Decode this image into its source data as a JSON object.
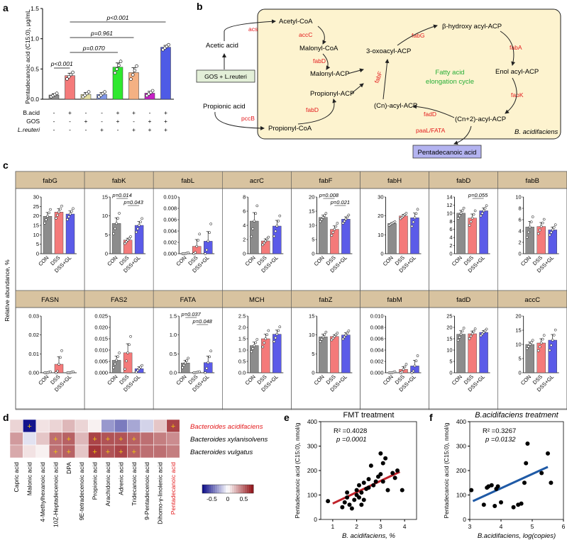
{
  "panel_labels": [
    "a",
    "b",
    "c",
    "d",
    "e",
    "f"
  ],
  "panel_a": {
    "ylabel": "Pentadecanoic acid (C15:0), μg/mL",
    "yticks": [
      "0.0",
      "0.5",
      "1.0",
      "1.5"
    ],
    "row_labels": [
      "B.acid",
      "GOS",
      "L.reuteri"
    ],
    "signs": [
      [
        "-",
        "+",
        "-",
        "-",
        "+",
        "+",
        "-",
        "+"
      ],
      [
        "-",
        "-",
        "+",
        "-",
        "+",
        "-",
        "+",
        "+"
      ],
      [
        "-",
        "-",
        "-",
        "+",
        "-",
        "+",
        "+",
        "+"
      ]
    ],
    "pvalues": [
      "p<0.001",
      "p=0.070",
      "p=0.961",
      "p<0.001"
    ],
    "colors": [
      "#8c8c8c",
      "#f47a7a",
      "#e5e0a3",
      "#7f96e8",
      "#2ee82e",
      "#f4b183",
      "#c61fc6",
      "#4e5be6"
    ]
  },
  "panel_b": {
    "nodes": {
      "acetyl_coa": "Acetyl-CoA",
      "malonyl_coa": "Malonyl-CoA",
      "malonyl_acp": "Malonyl-ACP",
      "propionyl_acp": "Propionyl-ACP",
      "propionyl_coa": "Propionyl-CoA",
      "acetic_acid": "Acetic acid",
      "propionic_acid": "Propionic acid",
      "gos_box": "GOS + L.reuteri",
      "oxoacyl": "3-oxoacyl-ACP",
      "hydroxy": "β-hydroxy acyl-ACP",
      "enol": "Enol acyl-ACP",
      "cn_acyl": "(Cn)-acyl-ACP",
      "cn2_acyl": "(Cn+2)-acyl-ACP",
      "cycle": [
        "Fatty acid",
        "elongation cycle"
      ],
      "organism": "B. acidifaciens",
      "product": "Pentadecanoic acid"
    },
    "enzymes": [
      "acs",
      "accC",
      "fabD",
      "fabD",
      "pccB",
      "fabF",
      "fabG",
      "fabA",
      "fabK",
      "fadD",
      "paaL/FATA"
    ]
  },
  "panel_c": {
    "ylabel": "Relative abundance, %",
    "groups": [
      "CON",
      "DSS",
      "DSS+GL"
    ],
    "group_colors": [
      "#8c8c8c",
      "#f47a7a",
      "#5b5be8"
    ],
    "header_color": "#d8c3a0",
    "genes": [
      {
        "name": "fabG",
        "yticks": [
          "0",
          "5",
          "10",
          "15",
          "20",
          "25",
          "30"
        ],
        "ymax": 30,
        "values": [
          19.8,
          22.0,
          21.0
        ],
        "errs": [
          2.0,
          1.8,
          1.6
        ],
        "pvalues": []
      },
      {
        "name": "fabK",
        "yticks": [
          "0",
          "5",
          "10",
          "15"
        ],
        "ymax": 15,
        "values": [
          8.0,
          3.6,
          7.5
        ],
        "errs": [
          1.5,
          0.5,
          1.0
        ],
        "pvalues": [
          "p=0.014",
          "p=0.043"
        ]
      },
      {
        "name": "fabL",
        "yticks": [
          "0.000",
          "0.002",
          "0.004",
          "0.006",
          "0.008",
          "0.010"
        ],
        "ymax": 0.01,
        "values": [
          0.0,
          0.0013,
          0.0022
        ],
        "errs": [
          0.0,
          0.0012,
          0.0017
        ],
        "pvalues": []
      },
      {
        "name": "acrC",
        "yticks": [
          "0",
          "2",
          "4",
          "6",
          "8"
        ],
        "ymax": 8,
        "values": [
          4.6,
          1.8,
          3.9
        ],
        "errs": [
          1.2,
          0.3,
          0.8
        ],
        "pvalues": []
      },
      {
        "name": "fabF",
        "yticks": [
          "0",
          "5",
          "10",
          "15",
          "20"
        ],
        "ymax": 20,
        "values": [
          12.8,
          8.6,
          12.2
        ],
        "errs": [
          0.8,
          1.2,
          0.8
        ],
        "pvalues": [
          "p=0.008",
          "p=0.021"
        ]
      },
      {
        "name": "fabH",
        "yticks": [
          "0",
          "10",
          "20",
          "30"
        ],
        "ymax": 30,
        "values": [
          16.0,
          20.0,
          19.0
        ],
        "errs": [
          0.5,
          0.8,
          2.5
        ],
        "pvalues": []
      },
      {
        "name": "fabD",
        "yticks": [
          "0",
          "2",
          "4",
          "6",
          "8",
          "10",
          "12",
          "14"
        ],
        "ymax": 14,
        "values": [
          10.0,
          8.8,
          10.6
        ],
        "errs": [
          0.7,
          1.0,
          0.7
        ],
        "pvalues": [
          "p=0.055"
        ]
      },
      {
        "name": "fabB",
        "yticks": [
          "0",
          "2",
          "4",
          "6",
          "8",
          "10"
        ],
        "ymax": 10,
        "values": [
          4.7,
          4.8,
          4.2
        ],
        "errs": [
          1.0,
          0.7,
          0.5
        ],
        "pvalues": []
      },
      {
        "name": "FASN",
        "yticks": [
          "0.00",
          "0.01",
          "0.02",
          "0.03"
        ],
        "ymax": 0.03,
        "values": [
          0.0,
          0.0045,
          0.0
        ],
        "errs": [
          0.0,
          0.004,
          0.0
        ],
        "pvalues": []
      },
      {
        "name": "FAS2",
        "yticks": [
          "0.000",
          "0.005",
          "0.010",
          "0.015",
          "0.020",
          "0.025"
        ],
        "ymax": 0.025,
        "values": [
          0.0055,
          0.0088,
          0.0018
        ],
        "errs": [
          0.0018,
          0.004,
          0.0008
        ],
        "pvalues": []
      },
      {
        "name": "FATA",
        "yticks": [
          "0.0",
          "0.5",
          "1.0",
          "1.5"
        ],
        "ymax": 1.5,
        "values": [
          0.26,
          0.01,
          0.27
        ],
        "errs": [
          0.07,
          0.01,
          0.17
        ],
        "pvalues": [
          "p=0.037",
          "p=0.048"
        ]
      },
      {
        "name": "MCH",
        "yticks": [
          "0.0",
          "0.5",
          "1.0",
          "1.5",
          "2.0",
          "2.5"
        ],
        "ymax": 2.5,
        "values": [
          1.2,
          1.5,
          1.7
        ],
        "errs": [
          0.15,
          0.2,
          0.18
        ],
        "pvalues": []
      },
      {
        "name": "fabZ",
        "yticks": [
          "0",
          "5",
          "10",
          "15"
        ],
        "ymax": 15,
        "values": [
          9.5,
          9.6,
          10.0
        ],
        "errs": [
          0.7,
          0.5,
          0.6
        ],
        "pvalues": []
      },
      {
        "name": "fabM",
        "yticks": [
          "0.000",
          "0.002",
          "0.004",
          "0.006",
          "0.008",
          "0.010"
        ],
        "ymax": 0.01,
        "values": [
          0.0,
          0.0006,
          0.0012
        ],
        "errs": [
          0.0,
          0.0005,
          0.001
        ],
        "pvalues": []
      },
      {
        "name": "fadD",
        "yticks": [
          "0",
          "5",
          "10",
          "15",
          "20",
          "25"
        ],
        "ymax": 25,
        "values": [
          17.0,
          17.2,
          17.8
        ],
        "errs": [
          1.5,
          1.2,
          0.8
        ],
        "pvalues": []
      },
      {
        "name": "accC",
        "yticks": [
          "0",
          "5",
          "10",
          "15",
          "20"
        ],
        "ymax": 20,
        "values": [
          10.0,
          10.5,
          11.5
        ],
        "errs": [
          0.8,
          1.5,
          2.0
        ],
        "pvalues": []
      }
    ]
  },
  "panel_d": {
    "rows": [
      "Bacteroides acidifaciens",
      "Bacteroides xylanisolvens",
      "Bacteroides vulgatus"
    ],
    "columns": [
      "Capric acid",
      "Malonic acid",
      "4-Methylhexanoic acid",
      "10Z-Heptadecenoic acid",
      "DPA",
      "9E-tetradecenoic acid",
      "Propionic acid",
      "Arachidonic acid",
      "Adrenic acid",
      "Tridecanoic acid",
      "9-Pentadecenoic acid",
      "Dihomo-γ-linolenic acid",
      "Pentadecanoic acid"
    ],
    "values": [
      [
        0.15,
        -0.8,
        0.1,
        0.15,
        0.25,
        0.15,
        0.05,
        -0.35,
        -0.45,
        -0.3,
        -0.15,
        0.2,
        0.65
      ],
      [
        0.35,
        -0.1,
        0.2,
        0.5,
        0.55,
        0.25,
        0.65,
        0.6,
        0.6,
        0.55,
        0.5,
        0.45,
        0.4
      ],
      [
        0.3,
        0.1,
        0.05,
        0.5,
        0.55,
        0.2,
        0.7,
        0.6,
        0.65,
        0.55,
        0.5,
        0.5,
        0.45
      ]
    ],
    "stars": [
      [
        false,
        true,
        false,
        false,
        false,
        false,
        false,
        false,
        false,
        false,
        false,
        false,
        true
      ],
      [
        false,
        false,
        false,
        true,
        true,
        false,
        true,
        true,
        true,
        true,
        false,
        false,
        false
      ],
      [
        false,
        false,
        false,
        true,
        true,
        false,
        true,
        true,
        true,
        true,
        false,
        false,
        false
      ]
    ],
    "colorbar_ticks": [
      "-0.5",
      "0",
      "0.5"
    ]
  },
  "chart_data": [
    {
      "type": "scatter",
      "title": "FMT treatment",
      "xlabel": "B. acidifaciens, %",
      "ylabel": "Pentadecanoic acid (C15:0), nmol/g",
      "xlim": [
        0.5,
        4.5
      ],
      "ylim": [
        0,
        400
      ],
      "xticks": [
        "1",
        "2",
        "3",
        "4"
      ],
      "yticks": [
        "0",
        "100",
        "200",
        "300",
        "400"
      ],
      "stats": [
        "R² =0.4028",
        "p =0.0001"
      ],
      "fit": {
        "x": [
          1.0,
          3.8
        ],
        "y": [
          65,
          195
        ]
      },
      "fit_color": "#c0232b",
      "x": [
        0.8,
        1.4,
        1.5,
        1.6,
        1.6,
        1.7,
        1.8,
        1.9,
        2.0,
        2.0,
        2.1,
        2.1,
        2.2,
        2.2,
        2.3,
        2.3,
        2.4,
        2.5,
        2.5,
        2.6,
        2.7,
        2.8,
        2.9,
        3.0,
        3.0,
        3.1,
        3.1,
        3.2,
        3.3,
        3.5,
        3.6,
        3.7,
        3.9
      ],
      "y": [
        75,
        50,
        70,
        90,
        110,
        60,
        45,
        80,
        120,
        100,
        140,
        90,
        60,
        110,
        150,
        80,
        125,
        165,
        130,
        220,
        140,
        155,
        175,
        185,
        270,
        230,
        155,
        250,
        120,
        190,
        170,
        200,
        120
      ]
    },
    {
      "type": "scatter",
      "title": "B.acidifaciens treatment",
      "xlabel": "B.acidifaciens, log(copies)",
      "ylabel": "Pentadecanoic acid (C15:0), nmol/g",
      "xlim": [
        3,
        6
      ],
      "ylim": [
        0,
        400
      ],
      "xticks": [
        "3",
        "4",
        "5",
        "6"
      ],
      "yticks": [
        "0",
        "100",
        "200",
        "300",
        "400"
      ],
      "stats": [
        "R² =0.3267",
        "p =0.0132"
      ],
      "fit": {
        "x": [
          3.1,
          5.5
        ],
        "y": [
          75,
          215
        ]
      },
      "fit_color": "#1f5aa6",
      "x": [
        3.05,
        3.45,
        3.55,
        3.6,
        3.7,
        3.8,
        3.85,
        3.9,
        4.0,
        4.4,
        4.55,
        4.65,
        4.75,
        4.8,
        4.85,
        5.3,
        5.5,
        5.6
      ],
      "y": [
        120,
        60,
        130,
        135,
        140,
        55,
        125,
        135,
        70,
        50,
        60,
        65,
        150,
        230,
        310,
        190,
        270,
        150
      ]
    }
  ]
}
